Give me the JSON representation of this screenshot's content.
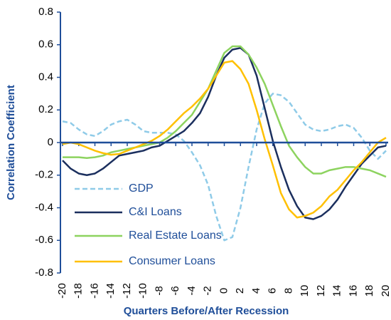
{
  "chart_data": {
    "type": "line",
    "x_label": "Quarters Before/After Recession",
    "y_label": "Correlation Coefficient",
    "x": [
      -20,
      -19,
      -18,
      -17,
      -16,
      -15,
      -14,
      -13,
      -12,
      -11,
      -10,
      -9,
      -8,
      -7,
      -6,
      -5,
      -4,
      -3,
      -2,
      -1,
      0,
      1,
      2,
      3,
      4,
      5,
      6,
      7,
      8,
      9,
      10,
      11,
      12,
      13,
      14,
      15,
      16,
      17,
      18,
      19,
      20
    ],
    "xlim": [
      -20,
      20
    ],
    "xticks": [
      -20,
      -18,
      -16,
      -14,
      -12,
      -10,
      -8,
      -6,
      -4,
      -2,
      0,
      2,
      4,
      6,
      8,
      10,
      12,
      14,
      16,
      18,
      20
    ],
    "ylim": [
      -0.8,
      0.8
    ],
    "yticks": [
      0.8,
      0.6,
      0.4,
      0.2,
      0,
      -0.2,
      -0.4,
      -0.6,
      -0.8
    ],
    "series": [
      {
        "name": "GDP",
        "color": "#8fcbe8",
        "dashed": true,
        "values": [
          0.13,
          0.12,
          0.08,
          0.05,
          0.04,
          0.07,
          0.11,
          0.13,
          0.14,
          0.11,
          0.07,
          0.06,
          0.06,
          0.06,
          0.05,
          0.01,
          -0.06,
          -0.14,
          -0.26,
          -0.45,
          -0.6,
          -0.58,
          -0.4,
          -0.15,
          0.08,
          0.24,
          0.3,
          0.29,
          0.25,
          0.18,
          0.11,
          0.08,
          0.07,
          0.08,
          0.1,
          0.11,
          0.09,
          0.03,
          -0.05,
          -0.1,
          -0.05
        ]
      },
      {
        "name": "C&I Loans",
        "color": "#1b2f5e",
        "values": [
          -0.11,
          -0.16,
          -0.19,
          -0.2,
          -0.19,
          -0.16,
          -0.12,
          -0.08,
          -0.07,
          -0.06,
          -0.05,
          -0.03,
          -0.02,
          0.01,
          0.04,
          0.07,
          0.12,
          0.18,
          0.28,
          0.41,
          0.52,
          0.57,
          0.58,
          0.54,
          0.41,
          0.21,
          0.01,
          -0.15,
          -0.29,
          -0.39,
          -0.46,
          -0.47,
          -0.45,
          -0.41,
          -0.35,
          -0.27,
          -0.2,
          -0.13,
          -0.08,
          -0.03,
          -0.02
        ]
      },
      {
        "name": "Real Estate Loans",
        "color": "#8dd35f",
        "values": [
          -0.09,
          -0.09,
          -0.09,
          -0.095,
          -0.09,
          -0.08,
          -0.06,
          -0.05,
          -0.04,
          -0.03,
          -0.02,
          -0.01,
          0,
          0.03,
          0.07,
          0.12,
          0.17,
          0.25,
          0.33,
          0.44,
          0.55,
          0.59,
          0.59,
          0.54,
          0.46,
          0.36,
          0.23,
          0.1,
          -0.02,
          -0.09,
          -0.15,
          -0.19,
          -0.19,
          -0.17,
          -0.16,
          -0.15,
          -0.15,
          -0.16,
          -0.17,
          -0.19,
          -0.21
        ]
      },
      {
        "name": "Consumer Loans",
        "color": "#ffc000",
        "values": [
          -0.01,
          0,
          -0.01,
          -0.03,
          -0.05,
          -0.065,
          -0.075,
          -0.07,
          -0.05,
          -0.03,
          -0.01,
          0.01,
          0.04,
          0.08,
          0.13,
          0.18,
          0.22,
          0.27,
          0.33,
          0.41,
          0.49,
          0.5,
          0.45,
          0.36,
          0.2,
          0.02,
          -0.14,
          -0.31,
          -0.41,
          -0.46,
          -0.45,
          -0.43,
          -0.39,
          -0.33,
          -0.29,
          -0.23,
          -0.17,
          -0.12,
          -0.06,
          0,
          0.03
        ]
      }
    ]
  }
}
